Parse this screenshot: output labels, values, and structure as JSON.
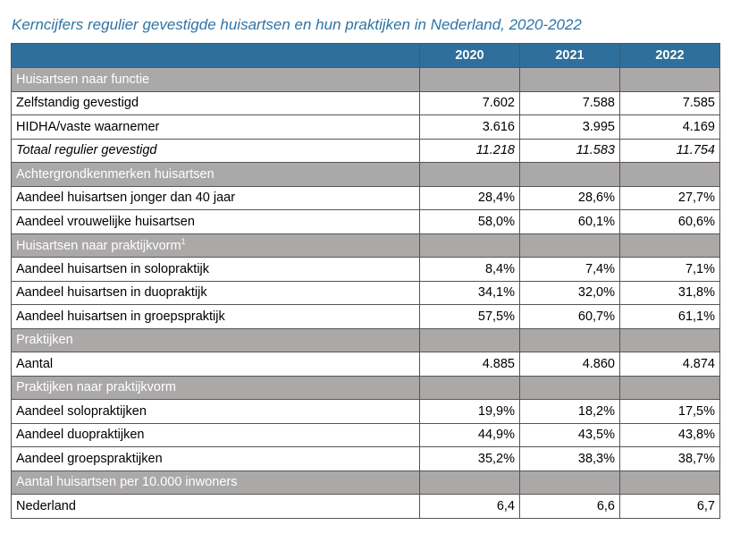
{
  "title": "Kerncijfers regulier gevestigde huisartsen en hun praktijken in Nederland, 2020-2022",
  "columns": [
    "2020",
    "2021",
    "2022"
  ],
  "rows": [
    {
      "type": "section",
      "label": "Huisartsen naar functie"
    },
    {
      "type": "row",
      "label": "Zelfstandig gevestigd",
      "values": [
        "7.602",
        "7.588",
        "7.585"
      ]
    },
    {
      "type": "row",
      "label": "HIDHA/vaste waarnemer",
      "values": [
        "3.616",
        "3.995",
        "4.169"
      ]
    },
    {
      "type": "italic",
      "label": "Totaal regulier gevestigd",
      "values": [
        "11.218",
        "11.583",
        "11.754"
      ]
    },
    {
      "type": "section",
      "label": "Achtergrondkenmerken huisartsen"
    },
    {
      "type": "row",
      "label": "Aandeel huisartsen jonger dan 40 jaar",
      "values": [
        "28,4%",
        "28,6%",
        "27,7%"
      ]
    },
    {
      "type": "row",
      "label": "Aandeel vrouwelijke huisartsen",
      "values": [
        "58,0%",
        "60,1%",
        "60,6%"
      ]
    },
    {
      "type": "section",
      "label": "Huisartsen naar praktijkvorm",
      "sup": "1"
    },
    {
      "type": "row",
      "label": "Aandeel huisartsen in solopraktijk",
      "values": [
        "8,4%",
        "7,4%",
        "7,1%"
      ]
    },
    {
      "type": "row",
      "label": "Aandeel huisartsen in duopraktijk",
      "values": [
        "34,1%",
        "32,0%",
        "31,8%"
      ]
    },
    {
      "type": "row",
      "label": "Aandeel huisartsen in groepspraktijk",
      "values": [
        "57,5%",
        "60,7%",
        "61,1%"
      ]
    },
    {
      "type": "section",
      "label": "Praktijken"
    },
    {
      "type": "row",
      "label": "Aantal",
      "values": [
        "4.885",
        "4.860",
        "4.874"
      ]
    },
    {
      "type": "section",
      "label": "Praktijken naar praktijkvorm"
    },
    {
      "type": "row",
      "label": "Aandeel solopraktijken",
      "values": [
        "19,9%",
        "18,2%",
        "17,5%"
      ]
    },
    {
      "type": "row",
      "label": "Aandeel duopraktijken",
      "values": [
        "44,9%",
        "43,5%",
        "43,8%"
      ]
    },
    {
      "type": "row",
      "label": "Aandeel groepspraktijken",
      "values": [
        "35,2%",
        "38,3%",
        "38,7%"
      ]
    },
    {
      "type": "section",
      "label": "Aantal huisartsen per 10.000 inwoners"
    },
    {
      "type": "row",
      "label": "Nederland",
      "values": [
        "6,4",
        "6,6",
        "6,7"
      ]
    }
  ],
  "colors": {
    "header": "#2f6f9b",
    "section": "#aba8a8",
    "title": "#2f74a5"
  }
}
